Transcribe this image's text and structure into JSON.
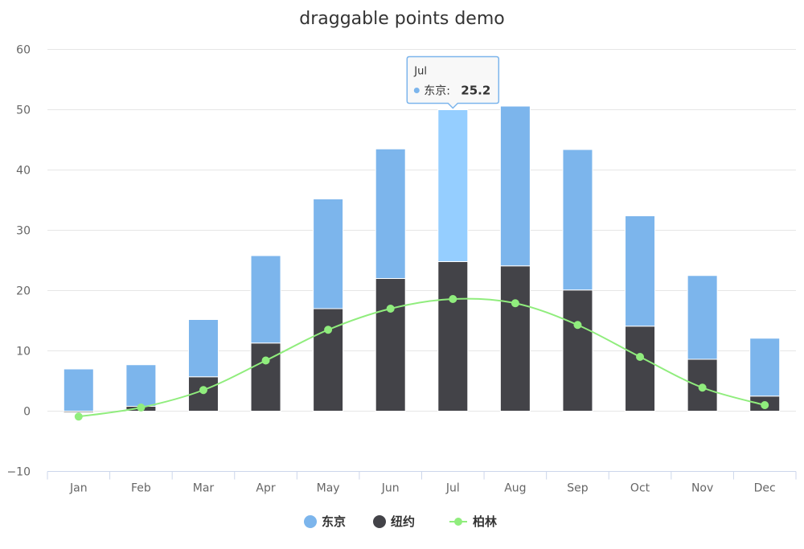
{
  "chart_data": {
    "type": "bar",
    "title": "draggable points demo",
    "categories": [
      "Jan",
      "Feb",
      "Mar",
      "Apr",
      "May",
      "Jun",
      "Jul",
      "Aug",
      "Sep",
      "Oct",
      "Nov",
      "Dec"
    ],
    "ylim": [
      -10,
      60
    ],
    "yticks": [
      -10,
      0,
      10,
      20,
      30,
      40,
      50,
      60
    ],
    "grid": true,
    "stacked": true,
    "legend_position": "bottom-center",
    "series": [
      {
        "name": "纽约",
        "type": "bar",
        "color": "#434348",
        "values": [
          -0.2,
          0.8,
          5.7,
          11.3,
          17.0,
          22.0,
          24.8,
          24.1,
          20.1,
          14.1,
          8.6,
          2.5
        ]
      },
      {
        "name": "东京",
        "type": "bar",
        "color": "#7cb5ec",
        "hover_color": "#95ceff",
        "values": [
          7.0,
          6.9,
          9.5,
          14.5,
          18.2,
          21.5,
          25.2,
          26.5,
          23.3,
          18.3,
          13.9,
          9.6
        ]
      },
      {
        "name": "柏林",
        "type": "line",
        "color": "#90ed7d",
        "values": [
          -0.9,
          0.6,
          3.5,
          8.4,
          13.5,
          17.0,
          18.6,
          17.9,
          14.3,
          9.0,
          3.9,
          1.0
        ]
      }
    ],
    "legend_order": [
      "东京",
      "纽约",
      "柏林"
    ],
    "tooltip": {
      "category": "Jul",
      "series": "东京",
      "label": "东京: ",
      "value": "25.2",
      "category_index": 6
    }
  }
}
